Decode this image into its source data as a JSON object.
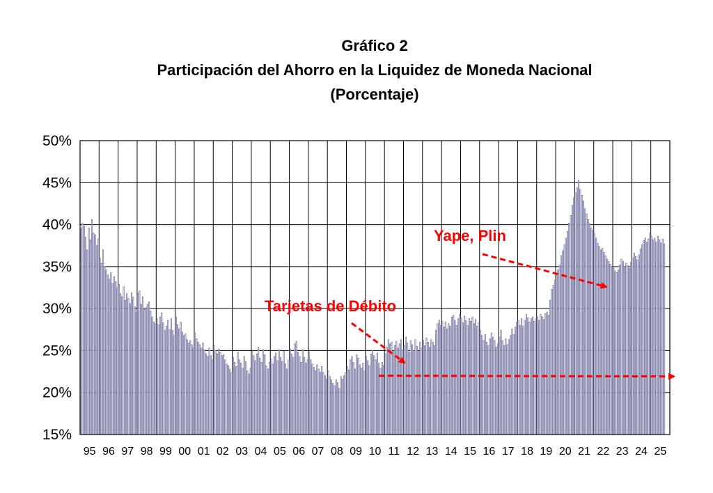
{
  "chart_data": {
    "type": "bar",
    "title": "Gráfico 2",
    "subtitle": "Participación del Ahorro en la Liquidez de Moneda Nacional",
    "unit_label": "(Porcentaje)",
    "xlabel": "",
    "ylabel": "",
    "ylim": [
      15,
      50
    ],
    "y_ticks": [
      "15%",
      "20%",
      "25%",
      "30%",
      "35%",
      "40%",
      "45%",
      "50%"
    ],
    "x_ticks": [
      "95",
      "96",
      "97",
      "98",
      "99",
      "00",
      "01",
      "02",
      "03",
      "04",
      "05",
      "06",
      "07",
      "08",
      "09",
      "10",
      "11",
      "12",
      "13",
      "14",
      "15",
      "16",
      "17",
      "18",
      "19",
      "20",
      "21",
      "22",
      "23",
      "24",
      "25"
    ],
    "grid": true,
    "bar_color": "#6a6a9a",
    "years": [
      {
        "label": "95",
        "values": [
          39.5,
          40.2,
          39.8,
          38.5,
          37.0,
          39.6,
          38.2,
          40.6,
          39.0,
          38.8,
          37.5,
          38.3
        ]
      },
      {
        "label": "96",
        "values": [
          36.0,
          35.4,
          37.0,
          35.0,
          34.6,
          34.0,
          33.5,
          34.3,
          33.0,
          33.8,
          33.2,
          32.5
        ]
      },
      {
        "label": "97",
        "values": [
          32.9,
          31.8,
          31.4,
          32.6,
          31.0,
          31.8,
          31.2,
          30.6,
          31.9,
          31.4,
          30.2,
          29.5
        ]
      },
      {
        "label": "98",
        "values": [
          31.8,
          32.1,
          30.5,
          31.4,
          29.9,
          30.1,
          30.5,
          30.8,
          29.7,
          29.0,
          28.4,
          28.2
        ]
      },
      {
        "label": "99",
        "values": [
          28.8,
          28.1,
          29.0,
          29.5,
          28.3,
          27.4,
          27.9,
          28.6,
          27.5,
          28.8,
          27.4,
          26.8
        ]
      },
      {
        "label": "00",
        "values": [
          29.0,
          28.1,
          27.6,
          28.4,
          27.2,
          26.8,
          27.0,
          26.3,
          25.9,
          26.2,
          25.7,
          25.3
        ]
      },
      {
        "label": "01",
        "values": [
          27.1,
          26.4,
          26.0,
          25.7,
          25.3,
          25.9,
          25.1,
          24.6,
          24.3,
          25.3,
          24.4,
          23.9
        ]
      },
      {
        "label": "02",
        "values": [
          25.6,
          25.0,
          24.6,
          25.2,
          24.8,
          24.4,
          24.5,
          23.9,
          23.4,
          23.2,
          22.8,
          22.4
        ]
      },
      {
        "label": "03",
        "values": [
          24.2,
          23.6,
          23.1,
          24.8,
          23.9,
          23.5,
          22.9,
          24.3,
          23.7,
          22.6,
          22.2,
          22.9
        ]
      },
      {
        "label": "04",
        "values": [
          24.9,
          24.4,
          23.8,
          24.6,
          25.4,
          24.1,
          23.6,
          25.1,
          24.5,
          23.2,
          22.8,
          23.6
        ]
      },
      {
        "label": "05",
        "values": [
          24.0,
          23.4,
          24.3,
          24.7,
          23.8,
          25.1,
          24.2,
          23.7,
          24.9,
          23.4,
          22.8,
          23.9
        ]
      },
      {
        "label": "06",
        "values": [
          25.2,
          24.6,
          24.2,
          25.8,
          26.1,
          24.8,
          24.3,
          23.6,
          25.1,
          24.2,
          23.5,
          23.9
        ]
      },
      {
        "label": "07",
        "values": [
          24.8,
          23.9,
          23.4,
          23.0,
          22.6,
          23.3,
          22.8,
          22.4,
          23.1,
          22.4,
          22.0,
          21.6
        ]
      },
      {
        "label": "08",
        "values": [
          22.6,
          21.9,
          21.5,
          21.1,
          20.8,
          21.5,
          21.2,
          20.5,
          21.9,
          21.6,
          22.0,
          22.4
        ]
      },
      {
        "label": "09",
        "values": [
          23.1,
          22.7,
          23.9,
          24.3,
          23.6,
          22.8,
          24.5,
          24.1,
          23.3,
          22.9,
          23.5,
          22.6
        ]
      },
      {
        "label": "10",
        "values": [
          24.3,
          23.8,
          23.2,
          24.6,
          25.0,
          24.4,
          23.9,
          24.7,
          23.5,
          22.9,
          23.6,
          23.2
        ]
      },
      {
        "label": "11",
        "values": [
          24.6,
          25.4,
          26.3,
          25.8,
          26.0,
          24.9,
          25.6,
          26.1,
          25.3,
          25.8,
          26.3,
          25.1
        ]
      },
      {
        "label": "12",
        "values": [
          25.6,
          26.6,
          25.9,
          24.8,
          26.2,
          25.7,
          25.0,
          26.3,
          25.5,
          24.9,
          26.0,
          25.3
        ]
      },
      {
        "label": "13",
        "values": [
          26.2,
          25.6,
          26.5,
          26.0,
          25.4,
          26.3,
          26.0,
          25.6,
          27.4,
          28.2,
          28.6,
          28.0
        ]
      },
      {
        "label": "14",
        "values": [
          28.5,
          27.8,
          28.4,
          27.6,
          28.2,
          27.9,
          29.0,
          29.2,
          28.6,
          28.0,
          28.8,
          29.3
        ]
      },
      {
        "label": "15",
        "values": [
          28.9,
          28.3,
          29.1,
          28.6,
          28.0,
          28.8,
          28.5,
          29.0,
          28.2,
          28.7,
          27.9,
          28.3
        ]
      },
      {
        "label": "16",
        "values": [
          27.4,
          26.8,
          26.2,
          26.9,
          26.0,
          25.6,
          26.4,
          27.1,
          26.6,
          26.2,
          25.4,
          25.8
        ]
      },
      {
        "label": "17",
        "values": [
          26.6,
          27.4,
          26.2,
          25.6,
          26.4,
          25.7,
          26.3,
          26.8,
          27.6,
          26.9,
          27.8,
          28.4
        ]
      },
      {
        "label": "18",
        "values": [
          28.6,
          28.0,
          28.8,
          27.9,
          28.6,
          29.3,
          28.9,
          28.4,
          28.8,
          29.0,
          28.5,
          28.8
        ]
      },
      {
        "label": "19",
        "values": [
          29.0,
          28.6,
          29.3,
          29.0,
          28.7,
          29.4,
          29.6,
          29.2,
          31.0,
          32.3,
          32.8,
          33.4
        ]
      },
      {
        "label": "20",
        "values": [
          34.0,
          34.6,
          35.2,
          36.3,
          36.9,
          37.6,
          38.4,
          39.2,
          40.2,
          41.1,
          42.3,
          43.2
        ]
      },
      {
        "label": "21",
        "values": [
          43.8,
          44.4,
          45.3,
          44.2,
          43.5,
          42.8,
          41.9,
          41.3,
          40.6,
          40.1,
          39.6,
          39.3
        ]
      },
      {
        "label": "22",
        "values": [
          38.9,
          38.4,
          37.8,
          37.4,
          37.0,
          37.2,
          36.7,
          36.3,
          35.9,
          35.6,
          35.3,
          35.0
        ]
      },
      {
        "label": "23",
        "values": [
          34.8,
          34.5,
          34.3,
          34.6,
          35.2,
          35.9,
          35.6,
          35.0,
          35.4,
          35.1,
          34.8,
          35.5
        ]
      },
      {
        "label": "24",
        "values": [
          36.0,
          36.6,
          36.2,
          35.8,
          36.4,
          37.1,
          37.6,
          38.1,
          38.4,
          37.9,
          38.3,
          39.0
        ]
      },
      {
        "label": "25",
        "values": [
          38.6,
          38.2,
          38.4,
          37.9,
          38.6,
          38.2,
          37.8,
          38.3,
          37.7
        ]
      }
    ],
    "annotations": [
      {
        "text": "Yape, Plin",
        "color": "#ff0000"
      },
      {
        "text": "Tarjetas de Débito",
        "color": "#ff0000"
      }
    ],
    "reference_line": {
      "value": 22.0,
      "color": "#ff0000",
      "style": "dashed"
    }
  }
}
